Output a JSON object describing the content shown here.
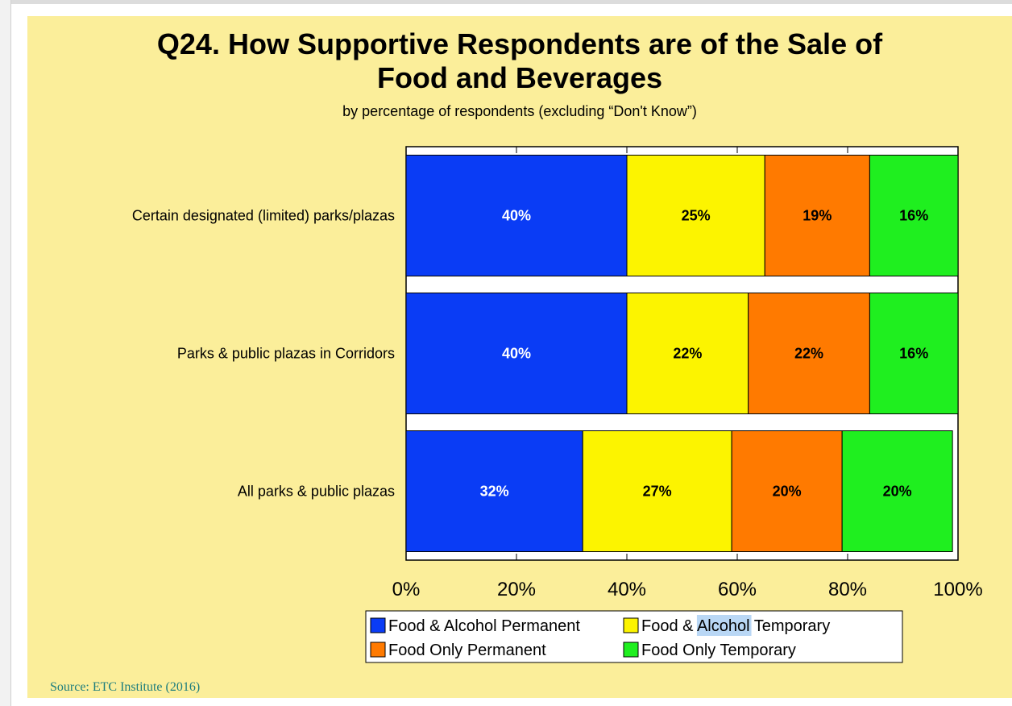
{
  "title": "Q24. How Supportive Respondents are of the Sale of\nFood and Beverages",
  "subtitle": "by percentage of respondents (excluding “Don't Know”)",
  "source": "Source: ETC Institute (2016)",
  "chart_data": {
    "type": "bar",
    "orientation": "horizontal",
    "stacked": true,
    "categories": [
      "Certain designated (limited) parks/plazas",
      "Parks & public plazas in Corridors",
      "All parks & public plazas"
    ],
    "series": [
      {
        "name": "Food & Alcohol Permanent",
        "color": "#0a3cf5",
        "label_color": "#ffffff",
        "values": [
          40,
          40,
          32
        ]
      },
      {
        "name": "Food & Alcohol Temporary",
        "color": "#fcf400",
        "label_color": "#000000",
        "values": [
          25,
          22,
          27
        ]
      },
      {
        "name": "Food Only Permanent",
        "color": "#ff7a00",
        "label_color": "#000000",
        "values": [
          19,
          22,
          20
        ]
      },
      {
        "name": "Food Only Temporary",
        "color": "#1fef1f",
        "label_color": "#000000",
        "values": [
          16,
          16,
          20
        ]
      }
    ],
    "data_labels": [
      [
        "40%",
        "25%",
        "19%",
        "16%"
      ],
      [
        "40%",
        "22%",
        "22%",
        "16%"
      ],
      [
        "32%",
        "27%",
        "20%",
        "20%"
      ]
    ],
    "xlim": [
      0,
      100
    ],
    "xticks": [
      "0%",
      "20%",
      "40%",
      "60%",
      "80%",
      "100%"
    ],
    "legend": {
      "placement": "bottom",
      "highlighted_word": {
        "series_index": 1,
        "prefix": "Food & ",
        "word": "Alcohol",
        "suffix": " Temporary"
      }
    },
    "grid": false
  }
}
